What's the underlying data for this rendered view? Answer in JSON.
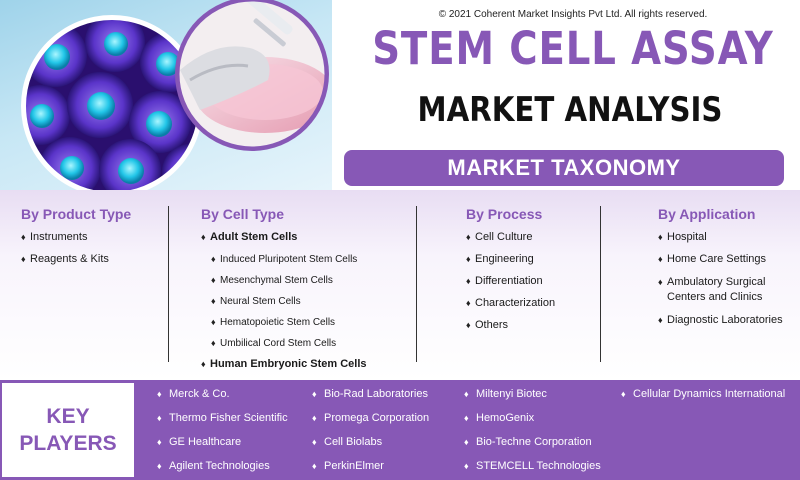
{
  "header": {
    "copyright": "© 2021 Coherent Market Insights Pvt Ltd. All rights reserved.",
    "title": "STEM CELL ASSAY",
    "subtitle": "MARKET ANALYSIS",
    "banner": "MARKET TAXONOMY"
  },
  "taxonomy": {
    "product_type": {
      "heading": "By Product Type",
      "items": [
        "Instruments",
        "Reagents & Kits"
      ]
    },
    "cell_type": {
      "heading": "By Cell Type",
      "adult": "Adult Stem Cells",
      "adult_sub": [
        "Induced Pluripotent Stem Cells",
        "Mesenchymal Stem Cells",
        "Neural Stem Cells",
        "Hematopoietic Stem Cells",
        "Umbilical Cord Stem Cells"
      ],
      "embryonic": "Human Embryonic Stem Cells"
    },
    "process": {
      "heading": "By Process",
      "items": [
        "Cell Culture",
        "Engineering",
        "Differentiation",
        "Characterization",
        "Others"
      ]
    },
    "application": {
      "heading": "By Application",
      "items": [
        "Hospital",
        "Home Care Settings",
        "Ambulatory Surgical Centers and Clinics",
        "Diagnostic Laboratories"
      ]
    }
  },
  "key_players": {
    "label_line1": "KEY",
    "label_line2": "PLAYERS",
    "col1": [
      "Merck & Co.",
      "Thermo Fisher Scientific",
      "GE Healthcare",
      "Agilent Technologies"
    ],
    "col2": [
      "Bio-Rad Laboratories",
      "Promega Corporation",
      "Cell Biolabs",
      "PerkinElmer"
    ],
    "col3": [
      "Miltenyi Biotec",
      "HemoGenix",
      "Bio-Techne Corporation",
      "STEMCELL Technologies"
    ],
    "col4": [
      "Cellular Dynamics International"
    ]
  },
  "colors": {
    "accent": "#8758b6",
    "cell_nucleus": "#22c6e8",
    "cell_body": "#6a3dd6"
  },
  "icons": {
    "bullet": "diamond-bullet-icon"
  }
}
